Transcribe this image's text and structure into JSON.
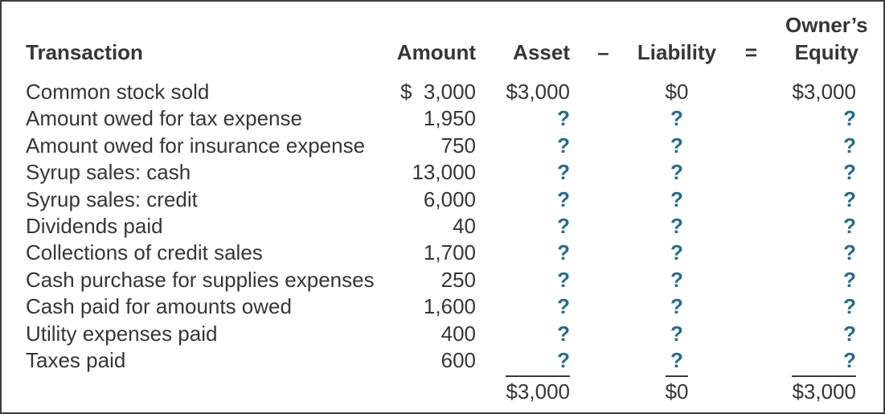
{
  "colors": {
    "text": "#363636",
    "question_mark": "#1E6C96",
    "total_rule": "#3a3a3a",
    "figure_border": "#3d3d3d",
    "background": "#ffffff"
  },
  "header": {
    "transaction": "Transaction",
    "amount": "Amount",
    "asset": "Asset",
    "minus": "–",
    "liability": "Liability",
    "equals": "=",
    "equity_line1": "Owner’s",
    "equity_line2": "Equity"
  },
  "rows": [
    {
      "transaction": "Common stock sold",
      "amount": "$  3,000",
      "asset": "$3,000",
      "liability": "$0",
      "equity": "$3,000"
    },
    {
      "transaction": "Amount owed for tax expense",
      "amount": "1,950",
      "asset": "?",
      "liability": "?",
      "equity": "?"
    },
    {
      "transaction": "Amount owed for insurance expense",
      "amount": "750",
      "asset": "?",
      "liability": "?",
      "equity": "?"
    },
    {
      "transaction": "Syrup sales: cash",
      "amount": "13,000",
      "asset": "?",
      "liability": "?",
      "equity": "?"
    },
    {
      "transaction": "Syrup sales: credit",
      "amount": "6,000",
      "asset": "?",
      "liability": "?",
      "equity": "?"
    },
    {
      "transaction": "Dividends paid",
      "amount": "40",
      "asset": "?",
      "liability": "?",
      "equity": "?"
    },
    {
      "transaction": "Collections of credit sales",
      "amount": "1,700",
      "asset": "?",
      "liability": "?",
      "equity": "?"
    },
    {
      "transaction": "Cash purchase for supplies expenses",
      "amount": "250",
      "asset": "?",
      "liability": "?",
      "equity": "?"
    },
    {
      "transaction": "Cash paid for amounts owed",
      "amount": "1,600",
      "asset": "?",
      "liability": "?",
      "equity": "?"
    },
    {
      "transaction": "Utility expenses paid",
      "amount": "400",
      "asset": "?",
      "liability": "?",
      "equity": "?"
    },
    {
      "transaction": "Taxes paid",
      "amount": "600",
      "asset": "?",
      "liability": "?",
      "equity": "?"
    }
  ],
  "totals": {
    "asset": "$3,000",
    "liability": "$0",
    "equity": "$3,000"
  }
}
